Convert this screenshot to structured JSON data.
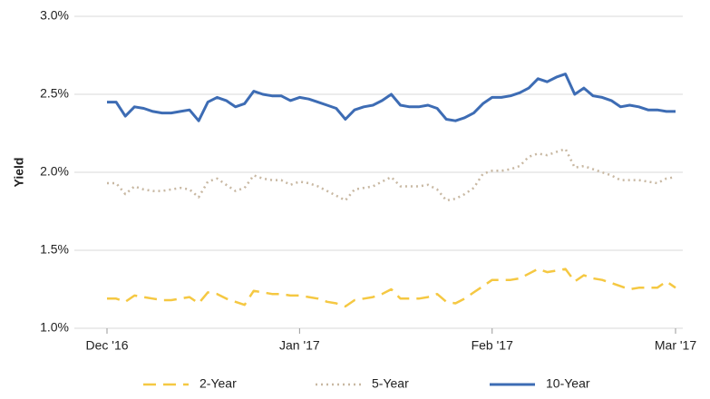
{
  "chart_data": {
    "type": "line",
    "y_label": "Yield",
    "categories": [
      "Dec '16",
      null,
      null,
      null,
      null,
      null,
      null,
      null,
      null,
      null,
      null,
      null,
      null,
      null,
      null,
      null,
      null,
      null,
      null,
      null,
      null,
      "Jan '17",
      null,
      null,
      null,
      null,
      null,
      null,
      null,
      null,
      null,
      null,
      null,
      null,
      null,
      null,
      null,
      null,
      null,
      null,
      null,
      null,
      "Feb '17",
      null,
      null,
      null,
      null,
      null,
      null,
      null,
      null,
      null,
      null,
      null,
      null,
      null,
      null,
      null,
      null,
      null,
      null,
      null,
      "Mar '17"
    ],
    "ylim": [
      1.0,
      3.0
    ],
    "yticks": [
      {
        "value": 1.0,
        "label": "1.0%"
      },
      {
        "value": 1.5,
        "label": "1.5%"
      },
      {
        "value": 2.0,
        "label": "2.0%"
      },
      {
        "value": 2.5,
        "label": "2.5%"
      },
      {
        "value": 3.0,
        "label": "3.0%"
      }
    ],
    "grid": true,
    "legend": "bottom",
    "series": [
      {
        "name": "2-Year",
        "color": "#f5c842",
        "dash": "dashed",
        "values": [
          1.19,
          1.19,
          1.17,
          1.21,
          1.2,
          1.19,
          1.18,
          1.18,
          1.19,
          1.2,
          1.16,
          1.23,
          1.22,
          1.19,
          1.17,
          1.15,
          1.24,
          1.23,
          1.22,
          1.22,
          1.21,
          1.21,
          1.2,
          1.19,
          1.17,
          1.16,
          1.14,
          1.18,
          1.19,
          1.2,
          1.22,
          1.25,
          1.19,
          1.19,
          1.19,
          1.2,
          1.22,
          1.17,
          1.16,
          1.19,
          1.23,
          1.27,
          1.31,
          1.31,
          1.31,
          1.32,
          1.35,
          1.38,
          1.36,
          1.37,
          1.38,
          1.3,
          1.34,
          1.32,
          1.31,
          1.29,
          1.27,
          1.25,
          1.26,
          1.26,
          1.26,
          1.3,
          1.26
        ]
      },
      {
        "name": "5-Year",
        "color": "#c8b8a2",
        "dash": "dotted",
        "values": [
          1.93,
          1.93,
          1.86,
          1.91,
          1.89,
          1.88,
          1.88,
          1.89,
          1.9,
          1.89,
          1.84,
          1.94,
          1.96,
          1.92,
          1.88,
          1.9,
          1.98,
          1.96,
          1.95,
          1.95,
          1.92,
          1.94,
          1.93,
          1.91,
          1.88,
          1.85,
          1.82,
          1.89,
          1.9,
          1.91,
          1.94,
          1.97,
          1.91,
          1.91,
          1.91,
          1.92,
          1.89,
          1.82,
          1.83,
          1.86,
          1.9,
          1.99,
          2.01,
          2.01,
          2.02,
          2.04,
          2.1,
          2.12,
          2.11,
          2.13,
          2.15,
          2.03,
          2.04,
          2.02,
          2.0,
          1.98,
          1.95,
          1.95,
          1.95,
          1.94,
          1.93,
          1.96,
          1.97
        ]
      },
      {
        "name": "10-Year",
        "color": "#3d6cb4",
        "dash": "solid",
        "values": [
          2.45,
          2.45,
          2.36,
          2.42,
          2.41,
          2.39,
          2.38,
          2.38,
          2.39,
          2.4,
          2.33,
          2.45,
          2.48,
          2.46,
          2.42,
          2.44,
          2.52,
          2.5,
          2.49,
          2.49,
          2.46,
          2.48,
          2.47,
          2.45,
          2.43,
          2.41,
          2.34,
          2.4,
          2.42,
          2.43,
          2.46,
          2.5,
          2.43,
          2.42,
          2.42,
          2.43,
          2.41,
          2.34,
          2.33,
          2.35,
          2.38,
          2.44,
          2.48,
          2.48,
          2.49,
          2.51,
          2.54,
          2.6,
          2.58,
          2.61,
          2.63,
          2.5,
          2.54,
          2.49,
          2.48,
          2.46,
          2.42,
          2.43,
          2.42,
          2.4,
          2.4,
          2.39,
          2.39
        ]
      }
    ]
  }
}
